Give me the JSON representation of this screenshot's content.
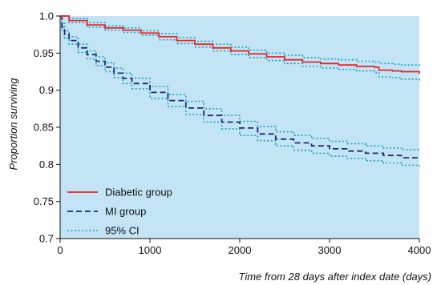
{
  "chart_data": {
    "type": "line",
    "title": "",
    "xlabel": "Time from 28 days after index date (days)",
    "ylabel": "Proportion surviving",
    "xlim": [
      0,
      4000
    ],
    "ylim": [
      0.7,
      1.0
    ],
    "xticks": [
      0,
      1000,
      2000,
      3000,
      4000
    ],
    "xtick_labels": [
      "0",
      "1000",
      "2000",
      "3000",
      "4000"
    ],
    "yticks": [
      0.7,
      0.75,
      0.8,
      0.85,
      0.9,
      0.95,
      1.0
    ],
    "ytick_labels": [
      "0.7",
      "0.75",
      "0.8",
      "0.85",
      "0.9",
      "0.95",
      "1.0"
    ],
    "grid": false,
    "plot_background": "#c2e4f5",
    "legend_position": "bottom-left",
    "series": [
      {
        "name": "Diabetic group",
        "color": "#e8252b",
        "style": "solid",
        "x": [
          0,
          100,
          300,
          500,
          700,
          900,
          1100,
          1300,
          1500,
          1700,
          1900,
          2100,
          2300,
          2500,
          2700,
          2900,
          3100,
          3300,
          3500,
          3550,
          3700,
          3800,
          4000
        ],
        "y": [
          1.0,
          0.994,
          0.988,
          0.984,
          0.981,
          0.977,
          0.972,
          0.967,
          0.962,
          0.957,
          0.953,
          0.949,
          0.945,
          0.941,
          0.938,
          0.936,
          0.934,
          0.932,
          0.931,
          0.927,
          0.926,
          0.925,
          0.922
        ]
      },
      {
        "name": "MI group",
        "color": "#1f2a7a",
        "style": "dashed",
        "x": [
          0,
          20,
          50,
          100,
          200,
          300,
          400,
          500,
          600,
          700,
          800,
          1000,
          1200,
          1400,
          1600,
          1800,
          2000,
          2200,
          2400,
          2600,
          2800,
          3000,
          3200,
          3400,
          3600,
          3800,
          4000
        ],
        "y": [
          1.0,
          0.985,
          0.975,
          0.967,
          0.957,
          0.948,
          0.939,
          0.931,
          0.923,
          0.916,
          0.909,
          0.897,
          0.886,
          0.876,
          0.866,
          0.857,
          0.849,
          0.841,
          0.834,
          0.829,
          0.825,
          0.821,
          0.818,
          0.815,
          0.812,
          0.809,
          0.807
        ]
      },
      {
        "name": "95% CI",
        "color": "#1aa6b8",
        "style": "dotted",
        "x": [
          0,
          100,
          300,
          500,
          700,
          900,
          1100,
          1300,
          1500,
          1700,
          1900,
          2100,
          2300,
          2500,
          2700,
          2900,
          3100,
          3300,
          3500,
          3550,
          3700,
          3800,
          4000
        ],
        "y": [
          1.0,
          0.997,
          0.991,
          0.987,
          0.984,
          0.98,
          0.976,
          0.971,
          0.966,
          0.962,
          0.958,
          0.954,
          0.95,
          0.947,
          0.944,
          0.942,
          0.941,
          0.939,
          0.938,
          0.936,
          0.935,
          0.934,
          0.932
        ]
      },
      {
        "color": "#1aa6b8",
        "style": "dotted",
        "x": [
          0,
          100,
          300,
          500,
          700,
          900,
          1100,
          1300,
          1500,
          1700,
          1900,
          2100,
          2300,
          2500,
          2700,
          2900,
          3100,
          3300,
          3500,
          3550,
          3700,
          3800,
          4000
        ],
        "y": [
          1.0,
          0.991,
          0.985,
          0.981,
          0.978,
          0.974,
          0.968,
          0.963,
          0.958,
          0.953,
          0.948,
          0.944,
          0.94,
          0.936,
          0.932,
          0.93,
          0.928,
          0.926,
          0.924,
          0.918,
          0.917,
          0.915,
          0.911
        ]
      },
      {
        "color": "#1aa6b8",
        "style": "dotted",
        "x": [
          0,
          20,
          50,
          100,
          200,
          300,
          400,
          500,
          600,
          700,
          800,
          1000,
          1200,
          1400,
          1600,
          1800,
          2000,
          2200,
          2400,
          2600,
          2800,
          3000,
          3200,
          3400,
          3600,
          3800,
          4000
        ],
        "y": [
          1.0,
          0.99,
          0.98,
          0.972,
          0.962,
          0.953,
          0.945,
          0.937,
          0.93,
          0.923,
          0.916,
          0.905,
          0.894,
          0.885,
          0.875,
          0.866,
          0.858,
          0.851,
          0.844,
          0.839,
          0.835,
          0.831,
          0.828,
          0.825,
          0.822,
          0.82,
          0.818
        ]
      },
      {
        "color": "#1aa6b8",
        "style": "dotted",
        "x": [
          0,
          20,
          50,
          100,
          200,
          300,
          400,
          500,
          600,
          700,
          800,
          1000,
          1200,
          1400,
          1600,
          1800,
          2000,
          2200,
          2400,
          2600,
          2800,
          3000,
          3200,
          3400,
          3600,
          3800,
          4000
        ],
        "y": [
          1.0,
          0.98,
          0.97,
          0.962,
          0.951,
          0.942,
          0.933,
          0.925,
          0.917,
          0.909,
          0.902,
          0.889,
          0.878,
          0.867,
          0.857,
          0.848,
          0.839,
          0.832,
          0.825,
          0.819,
          0.815,
          0.811,
          0.808,
          0.805,
          0.802,
          0.799,
          0.797
        ]
      }
    ],
    "legend": [
      {
        "label": "Diabetic group",
        "color": "#e8252b",
        "style": "solid"
      },
      {
        "label": "MI group",
        "color": "#1f2a7a",
        "style": "dashed"
      },
      {
        "label": "95% CI",
        "color": "#1aa6b8",
        "style": "dotted"
      }
    ]
  }
}
